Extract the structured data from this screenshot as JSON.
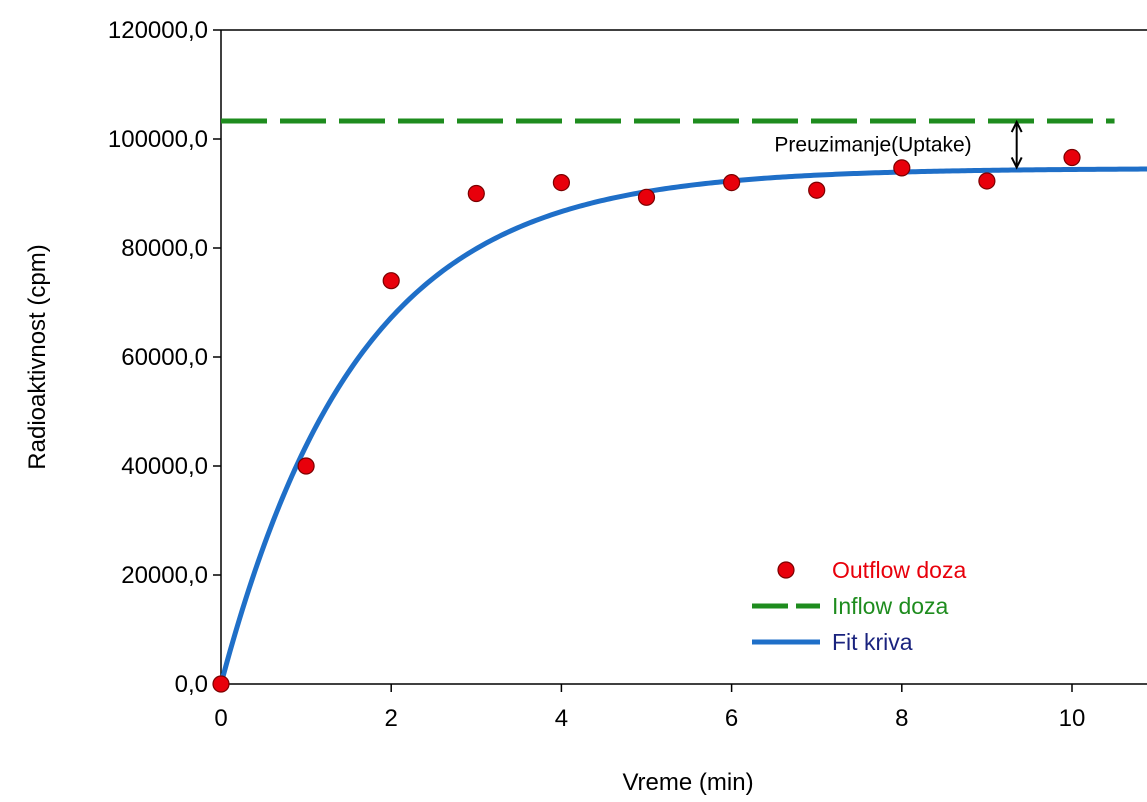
{
  "chart_data": {
    "type": "scatter",
    "xlabel": "Vreme (min)",
    "ylabel": "Radioaktivnost (cpm)",
    "xlim": [
      0,
      11
    ],
    "ylim": [
      0,
      120000
    ],
    "x_ticks": [
      0,
      2,
      4,
      6,
      8,
      10
    ],
    "x_tick_labels": [
      "0",
      "2",
      "4",
      "6",
      "8",
      "10"
    ],
    "y_ticks": [
      0,
      20000,
      40000,
      60000,
      80000,
      100000,
      120000
    ],
    "y_tick_labels": [
      "0,0",
      "20000,0",
      "40000,0",
      "60000,0",
      "80000,0",
      "100000,0",
      "120000,0"
    ],
    "grid": false,
    "legend_position": "bottom-right",
    "series": [
      {
        "name": "Outflow doza",
        "kind": "scatter",
        "color": "#e8000b",
        "x": [
          0,
          1,
          2,
          3,
          4,
          5,
          6,
          7,
          8,
          9,
          10
        ],
        "y": [
          0,
          40000,
          74000,
          90000,
          92000,
          89300,
          92000,
          90600,
          94700,
          92300,
          96600
        ]
      },
      {
        "name": "Inflow doza",
        "kind": "line-dashed",
        "color": "#1e8c1e",
        "x": [
          0,
          10.5
        ],
        "y": [
          103300,
          103300
        ]
      },
      {
        "name": "Fit kriva",
        "kind": "line",
        "color": "#1f6fc8",
        "model": {
          "form": "a*(1-exp(-b*x))",
          "a": 94600,
          "b": 0.62
        }
      }
    ],
    "annotations": [
      {
        "text": "Preuzimanje(Uptake)",
        "x": 9.35,
        "y_from": 94600,
        "y_to": 103300
      }
    ]
  }
}
